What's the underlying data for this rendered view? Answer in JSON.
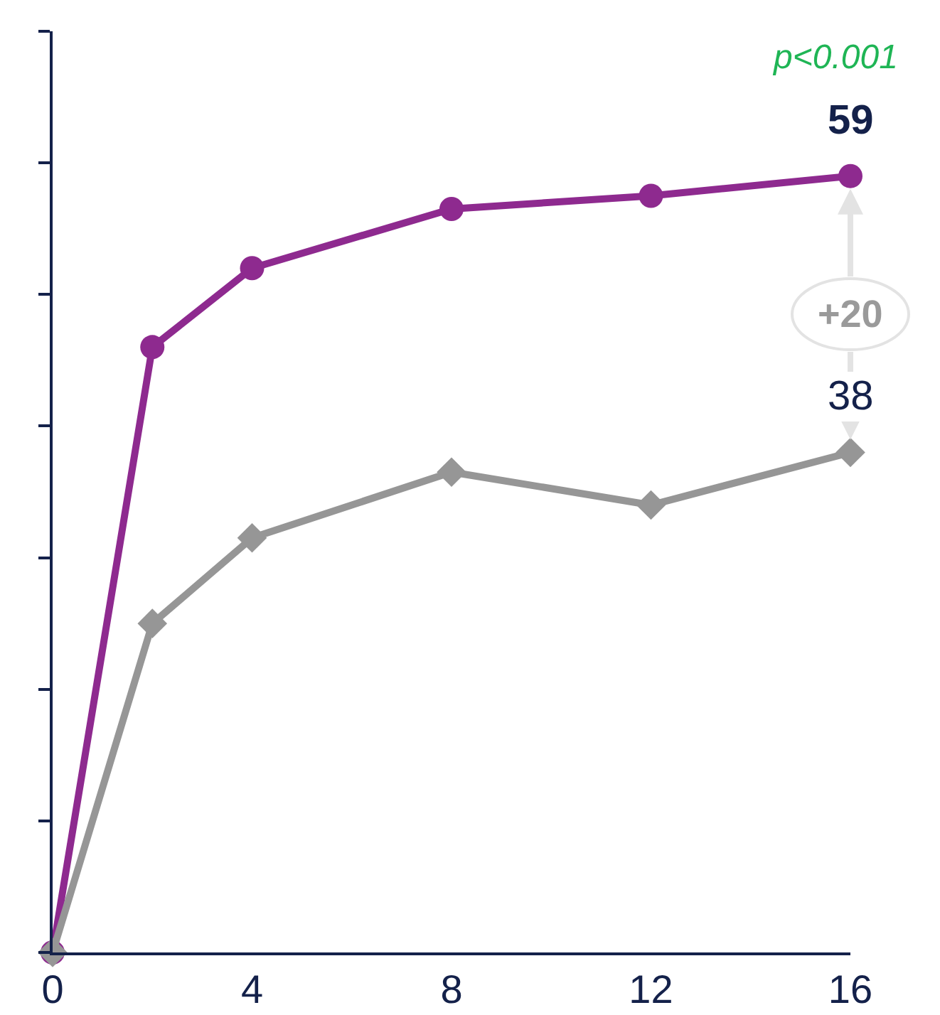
{
  "chart_data": {
    "type": "line",
    "x": [
      0,
      2,
      4,
      8,
      12,
      16
    ],
    "xlim": [
      0,
      16
    ],
    "xticks": [
      0,
      4,
      8,
      12,
      16
    ],
    "ylim": [
      0,
      70
    ],
    "yticks": [
      {
        "value": 0,
        "label": null
      },
      {
        "value": 10,
        "label": null
      },
      {
        "value": 20,
        "label": null
      },
      {
        "value": 30,
        "label": null
      },
      {
        "value": 40,
        "label": null
      },
      {
        "value": 50,
        "label": null
      },
      {
        "value": 60,
        "label": null
      },
      {
        "value": 70,
        "label": null
      }
    ],
    "tick_labels": "x",
    "grid": false,
    "line_style": "solid",
    "series": [
      {
        "color": "#8e2a8f",
        "marker": "circle",
        "values": [
          0,
          46,
          52,
          56.5,
          57.5,
          59
        ],
        "value_labels": [
          null,
          null,
          null,
          null,
          null,
          "59"
        ]
      },
      {
        "color": "#969696",
        "marker": "diamond",
        "values": [
          0,
          25,
          31.5,
          36.5,
          34,
          38
        ],
        "value_labels": [
          null,
          null,
          null,
          null,
          null,
          "38"
        ]
      }
    ],
    "annotations": [
      "p<0.001",
      "+20"
    ]
  }
}
